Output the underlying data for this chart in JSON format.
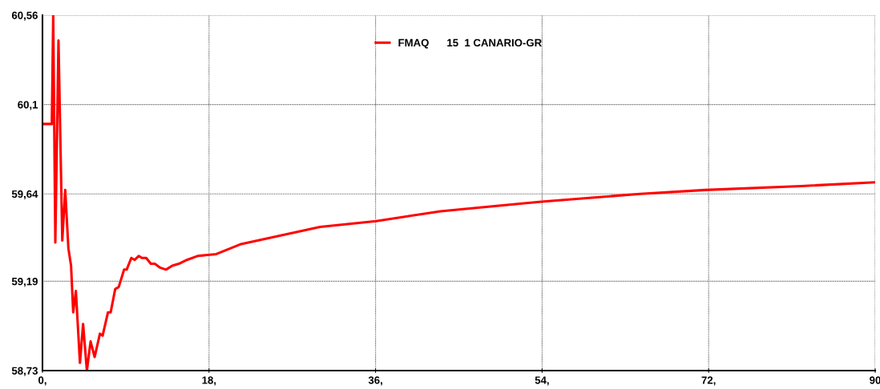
{
  "chart_data": {
    "type": "line",
    "x": [
      0,
      1.01,
      1.16,
      1.39,
      1.73,
      2.14,
      2.46,
      2.8,
      3.09,
      3.32,
      3.61,
      4.05,
      4.39,
      4.8,
      5.2,
      5.64,
      6.21,
      6.5,
      7.08,
      7.37,
      7.86,
      8.24,
      8.82,
      9.1,
      9.6,
      9.97,
      10.4,
      10.75,
      11.21,
      11.71,
      12.14,
      12.72,
      13.35,
      14.02,
      14.74,
      15.61,
      16.76,
      18.79,
      21.36,
      30.0,
      36.07,
      43.0,
      53.9,
      64.6,
      71.6,
      82.0,
      90
    ],
    "series": [
      {
        "name": "FMAQ      15  1 CANARIO-GR",
        "color": "#ff0000",
        "values": [
          60.0,
          60.0,
          60.56,
          59.39,
          60.43,
          59.4,
          59.66,
          59.36,
          59.27,
          59.03,
          59.14,
          58.77,
          58.97,
          58.73,
          58.88,
          58.8,
          58.92,
          58.91,
          59.03,
          59.03,
          59.15,
          59.16,
          59.25,
          59.25,
          59.31,
          59.3,
          59.32,
          59.31,
          59.31,
          59.28,
          59.28,
          59.26,
          59.25,
          59.27,
          59.28,
          59.3,
          59.32,
          59.33,
          59.38,
          59.47,
          59.5,
          59.55,
          59.6,
          59.64,
          59.66,
          59.68,
          59.7
        ]
      }
    ],
    "xlim": [
      0,
      90
    ],
    "xticks": [
      {
        "value": 0,
        "label": "0,"
      },
      {
        "value": 18,
        "label": "18,"
      },
      {
        "value": 36,
        "label": "36,"
      },
      {
        "value": 54,
        "label": "54,"
      },
      {
        "value": 72,
        "label": "72,"
      },
      {
        "value": 90,
        "label": "90"
      }
    ],
    "ylim": [
      58.73,
      60.56
    ],
    "yticks": [
      {
        "value": 58.73,
        "label": "58,73"
      },
      {
        "value": 59.19,
        "label": "59,19"
      },
      {
        "value": 59.64,
        "label": "59,64"
      },
      {
        "value": 60.1,
        "label": "60,1"
      },
      {
        "value": 60.56,
        "label": "60,56"
      }
    ],
    "grid": true,
    "legend": "top",
    "marker": "none",
    "line_style": "solid"
  }
}
